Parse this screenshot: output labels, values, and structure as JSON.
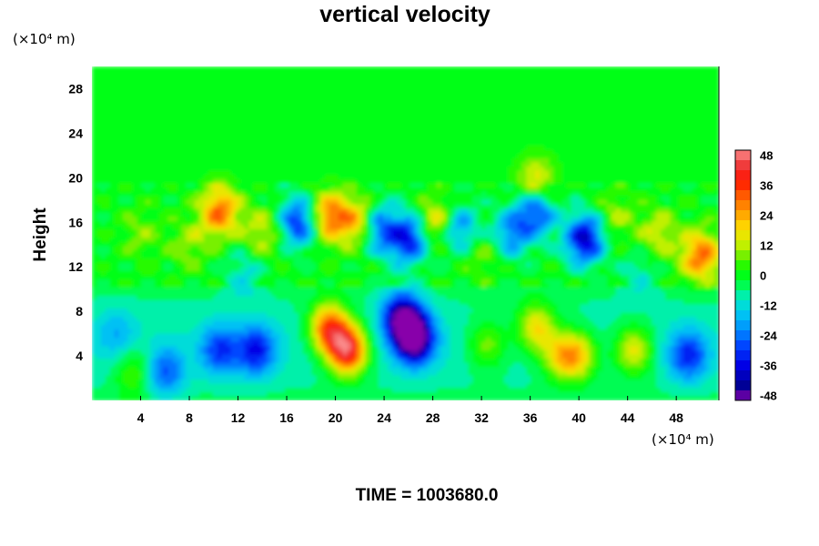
{
  "chart_data": {
    "type": "heatmap",
    "title": "vertical velocity",
    "ylabel": "Height",
    "xlabel": "",
    "x_unit": "(×10⁴ m)",
    "y_unit": "(×10⁴ m)",
    "xlim": [
      0,
      51.5
    ],
    "ylim": [
      0,
      30
    ],
    "x_ticks": [
      "4",
      "8",
      "12",
      "16",
      "20",
      "24",
      "28",
      "32",
      "36",
      "40",
      "44",
      "48"
    ],
    "y_ticks": [
      "4",
      "8",
      "12",
      "16",
      "20",
      "24",
      "28"
    ],
    "colorbar": {
      "range": [
        -50,
        50
      ],
      "ticks": [
        "48",
        "36",
        "24",
        "12",
        "0",
        "-12",
        "-24",
        "-36",
        "-48"
      ]
    },
    "time_label": "TIME = 1003680.0",
    "features": [
      {
        "x": 21,
        "y": 4.5,
        "value": 50
      },
      {
        "x": 19.5,
        "y": 6.5,
        "value": 40
      },
      {
        "x": 26.5,
        "y": 5.5,
        "value": -48
      },
      {
        "x": 25.5,
        "y": 7.5,
        "value": -40
      },
      {
        "x": 13.5,
        "y": 4.5,
        "value": -26
      },
      {
        "x": 10.5,
        "y": 4.5,
        "value": -22
      },
      {
        "x": 36.5,
        "y": 6.5,
        "value": 26
      },
      {
        "x": 38.5,
        "y": 4,
        "value": 22
      },
      {
        "x": 40,
        "y": 4,
        "value": 24
      },
      {
        "x": 44.5,
        "y": 4.5,
        "value": 24
      },
      {
        "x": 49,
        "y": 4,
        "value": -24
      },
      {
        "x": 32.5,
        "y": 5,
        "value": 16
      },
      {
        "x": 3.5,
        "y": 2.5,
        "value": 14
      },
      {
        "x": 6,
        "y": 2.5,
        "value": -20
      },
      {
        "x": 2,
        "y": 6,
        "value": -10
      },
      {
        "x": 40.5,
        "y": 14.5,
        "value": -40
      },
      {
        "x": 26,
        "y": 14.5,
        "value": -34
      },
      {
        "x": 17,
        "y": 16,
        "value": -32
      },
      {
        "x": 23.5,
        "y": 15.5,
        "value": -30
      },
      {
        "x": 30,
        "y": 15.5,
        "value": -26
      },
      {
        "x": 34.5,
        "y": 15,
        "value": -22
      },
      {
        "x": 36.5,
        "y": 17,
        "value": -30
      },
      {
        "x": 10.5,
        "y": 17,
        "value": 30
      },
      {
        "x": 19.5,
        "y": 16.5,
        "value": 30
      },
      {
        "x": 22,
        "y": 16,
        "value": 26
      },
      {
        "x": 28.5,
        "y": 16,
        "value": 24
      },
      {
        "x": 50,
        "y": 13,
        "value": 30
      },
      {
        "x": 36.5,
        "y": 19.5,
        "value": 20
      },
      {
        "x": 14,
        "y": 15,
        "value": 14
      },
      {
        "x": 46.5,
        "y": 15,
        "value": 14
      },
      {
        "x": 8,
        "y": 14,
        "value": 10
      },
      {
        "x": 43,
        "y": 16.5,
        "value": 10
      },
      {
        "x": 12.5,
        "y": 11.5,
        "value": -12
      },
      {
        "x": 45,
        "y": 11.5,
        "value": -10
      },
      {
        "x": 4,
        "y": 15,
        "value": 8
      },
      {
        "x": 32,
        "y": 13,
        "value": 8
      }
    ]
  }
}
